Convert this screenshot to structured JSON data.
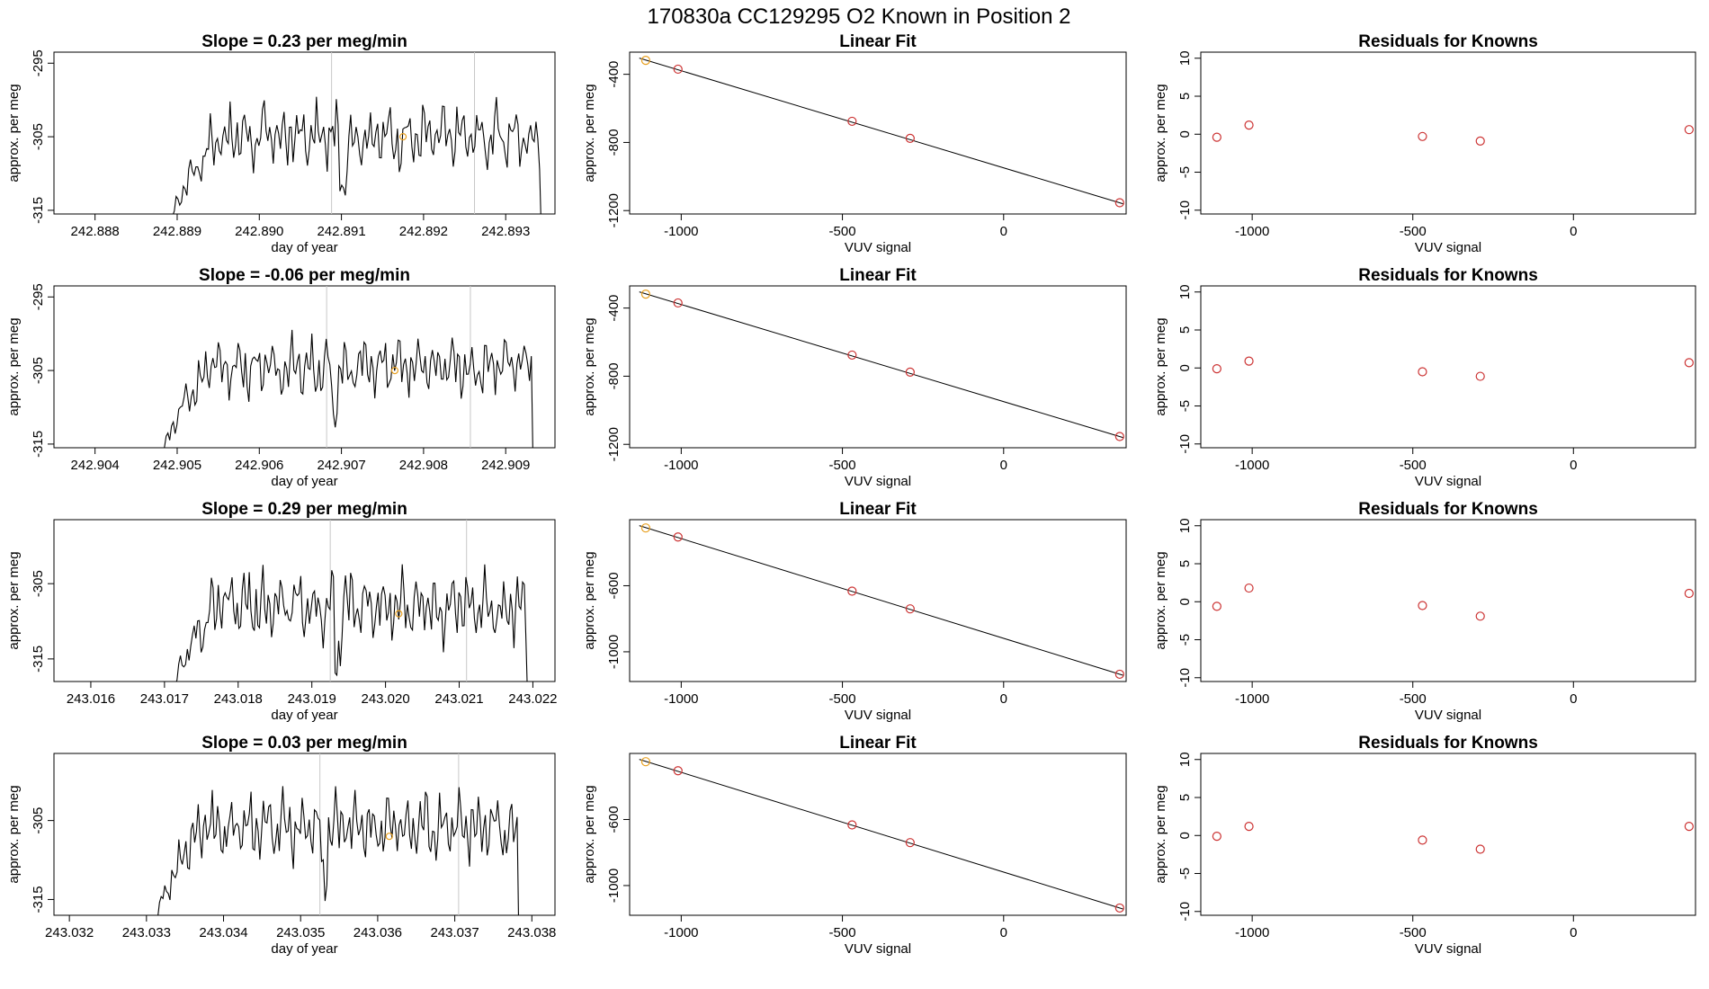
{
  "page": {
    "title": "170830a      CC129295   O2 Known in Position  2"
  },
  "colors": {
    "trace": "#000000",
    "grid_vline": "#c8c8c8",
    "fit_line": "#000000",
    "point_red": "#cc3333",
    "point_orange": "#e8a020"
  },
  "chart_data": [
    {
      "type": "line",
      "title": "Slope =  0.23  per meg/min",
      "xlabel": "day of year",
      "ylabel": "approx. per meg",
      "xlim": [
        242.8875,
        242.8936
      ],
      "ylim": [
        -315.5,
        -293.5
      ],
      "xticks": [
        {
          "v": 242.888,
          "t": "242.888"
        },
        {
          "v": 242.889,
          "t": "242.889"
        },
        {
          "v": 242.89,
          "t": "242.890"
        },
        {
          "v": 242.891,
          "t": "242.891"
        },
        {
          "v": 242.892,
          "t": "242.892"
        },
        {
          "v": 242.893,
          "t": "242.893"
        }
      ],
      "yticks": [
        {
          "v": -295,
          "t": "-295"
        },
        {
          "v": -305,
          "t": "-305"
        },
        {
          "v": -315,
          "t": "-315"
        }
      ],
      "trace": {
        "x_start": 242.8889,
        "x_end": 242.8935,
        "level": -305,
        "amp": 2.2
      },
      "vlines": [
        242.89088,
        242.89262
      ],
      "marker": {
        "x": 242.89175,
        "y": -305
      }
    },
    {
      "type": "scatter",
      "title": "Linear Fit",
      "xlabel": "VUV signal",
      "ylabel": "approx. per meg",
      "xlim": [
        -1160,
        380
      ],
      "ylim": [
        -1220,
        -270
      ],
      "xticks": [
        {
          "v": -1000,
          "t": "-1000"
        },
        {
          "v": -500,
          "t": "-500"
        },
        {
          "v": 0,
          "t": "0"
        }
      ],
      "yticks": [
        {
          "v": -400,
          "t": "-400"
        },
        {
          "v": -800,
          "t": "-800"
        },
        {
          "v": -1200,
          "t": "-1200"
        }
      ],
      "points": [
        {
          "x": -1110,
          "y": -318,
          "c": "orange"
        },
        {
          "x": -1010,
          "y": -370
        },
        {
          "x": -470,
          "y": -676
        },
        {
          "x": -290,
          "y": -776
        },
        {
          "x": 360,
          "y": -1154
        }
      ],
      "fit": {
        "x0": -1130,
        "y0": -305,
        "x1": 370,
        "y1": -1160
      }
    },
    {
      "type": "scatter",
      "title": "Residuals for Knowns",
      "xlabel": "VUV signal",
      "ylabel": "approx. per meg",
      "xlim": [
        -1160,
        380
      ],
      "ylim": [
        -10.5,
        10.8
      ],
      "xticks": [
        {
          "v": -1000,
          "t": "-1000"
        },
        {
          "v": -500,
          "t": "-500"
        },
        {
          "v": 0,
          "t": "0"
        }
      ],
      "yticks": [
        {
          "v": 10,
          "t": "10"
        },
        {
          "v": 5,
          "t": "5"
        },
        {
          "v": 0,
          "t": "0"
        },
        {
          "v": -5,
          "t": "-5"
        },
        {
          "v": -10,
          "t": "-10"
        }
      ],
      "points": [
        {
          "x": -1110,
          "y": -0.4
        },
        {
          "x": -1010,
          "y": 1.2
        },
        {
          "x": -470,
          "y": -0.3
        },
        {
          "x": -290,
          "y": -0.9
        },
        {
          "x": 360,
          "y": 0.6
        }
      ]
    },
    {
      "type": "line",
      "title": "Slope =  -0.06  per meg/min",
      "xlabel": "day of year",
      "ylabel": "approx. per meg",
      "xlim": [
        242.9035,
        242.9096
      ],
      "ylim": [
        -315.5,
        -293.5
      ],
      "xticks": [
        {
          "v": 242.904,
          "t": "242.904"
        },
        {
          "v": 242.905,
          "t": "242.905"
        },
        {
          "v": 242.906,
          "t": "242.906"
        },
        {
          "v": 242.907,
          "t": "242.907"
        },
        {
          "v": 242.908,
          "t": "242.908"
        },
        {
          "v": 242.909,
          "t": "242.909"
        }
      ],
      "yticks": [
        {
          "v": -295,
          "t": "-295"
        },
        {
          "v": -305,
          "t": "-305"
        },
        {
          "v": -315,
          "t": "-315"
        }
      ],
      "trace": {
        "x_start": 242.9048,
        "x_end": 242.9094,
        "level": -304.5,
        "amp": 2.0
      },
      "vlines": [
        242.90682,
        242.90857
      ],
      "marker": {
        "x": 242.90765,
        "y": -305
      }
    },
    {
      "type": "scatter",
      "title": "Linear Fit",
      "xlabel": "VUV signal",
      "ylabel": "approx. per meg",
      "xlim": [
        -1160,
        380
      ],
      "ylim": [
        -1220,
        -270
      ],
      "xticks": [
        {
          "v": -1000,
          "t": "-1000"
        },
        {
          "v": -500,
          "t": "-500"
        },
        {
          "v": 0,
          "t": "0"
        }
      ],
      "yticks": [
        {
          "v": -400,
          "t": "-400"
        },
        {
          "v": -800,
          "t": "-800"
        },
        {
          "v": -1200,
          "t": "-1200"
        }
      ],
      "points": [
        {
          "x": -1110,
          "y": -318,
          "c": "orange"
        },
        {
          "x": -1010,
          "y": -370
        },
        {
          "x": -470,
          "y": -676
        },
        {
          "x": -290,
          "y": -776
        },
        {
          "x": 360,
          "y": -1154
        }
      ],
      "fit": {
        "x0": -1130,
        "y0": -305,
        "x1": 370,
        "y1": -1160
      }
    },
    {
      "type": "scatter",
      "title": "Residuals for Knowns",
      "xlabel": "VUV signal",
      "ylabel": "approx. per meg",
      "xlim": [
        -1160,
        380
      ],
      "ylim": [
        -10.5,
        10.8
      ],
      "xticks": [
        {
          "v": -1000,
          "t": "-1000"
        },
        {
          "v": -500,
          "t": "-500"
        },
        {
          "v": 0,
          "t": "0"
        }
      ],
      "yticks": [
        {
          "v": 10,
          "t": "10"
        },
        {
          "v": 5,
          "t": "5"
        },
        {
          "v": 0,
          "t": "0"
        },
        {
          "v": -5,
          "t": "-5"
        },
        {
          "v": -10,
          "t": "-10"
        }
      ],
      "points": [
        {
          "x": -1110,
          "y": -0.1
        },
        {
          "x": -1010,
          "y": 0.9
        },
        {
          "x": -470,
          "y": -0.5
        },
        {
          "x": -290,
          "y": -1.1
        },
        {
          "x": 360,
          "y": 0.7
        }
      ]
    },
    {
      "type": "line",
      "title": "Slope =  0.29  per meg/min",
      "xlabel": "day of year",
      "ylabel": "approx. per meg",
      "xlim": [
        243.0155,
        243.0223
      ],
      "ylim": [
        -318,
        -296.5
      ],
      "xticks": [
        {
          "v": 243.016,
          "t": "243.016"
        },
        {
          "v": 243.017,
          "t": "243.017"
        },
        {
          "v": 243.018,
          "t": "243.018"
        },
        {
          "v": 243.019,
          "t": "243.019"
        },
        {
          "v": 243.02,
          "t": "243.020"
        },
        {
          "v": 243.021,
          "t": "243.021"
        },
        {
          "v": 243.022,
          "t": "243.022"
        }
      ],
      "yticks": [
        {
          "v": -305,
          "t": "-305"
        },
        {
          "v": -315,
          "t": "-315"
        }
      ],
      "trace": {
        "x_start": 243.0171,
        "x_end": 243.022,
        "level": -308,
        "amp": 2.4
      },
      "vlines": [
        243.01925,
        243.0211
      ],
      "marker": {
        "x": 243.02018,
        "y": -309
      }
    },
    {
      "type": "scatter",
      "title": "Linear Fit",
      "xlabel": "VUV signal",
      "ylabel": "approx. per meg",
      "xlim": [
        -1160,
        380
      ],
      "ylim": [
        -1180,
        -200
      ],
      "xticks": [
        {
          "v": -1000,
          "t": "-1000"
        },
        {
          "v": -500,
          "t": "-500"
        },
        {
          "v": 0,
          "t": "0"
        }
      ],
      "yticks": [
        {
          "v": -600,
          "t": "-600"
        },
        {
          "v": -1000,
          "t": "-1000"
        }
      ],
      "points": [
        {
          "x": -1110,
          "y": -250,
          "c": "orange"
        },
        {
          "x": -1010,
          "y": -305
        },
        {
          "x": -470,
          "y": -633
        },
        {
          "x": -290,
          "y": -740
        },
        {
          "x": 360,
          "y": -1136
        }
      ],
      "fit": {
        "x0": -1130,
        "y0": -236,
        "x1": 370,
        "y1": -1142
      }
    },
    {
      "type": "scatter",
      "title": "Residuals for Knowns",
      "xlabel": "VUV signal",
      "ylabel": "approx. per meg",
      "xlim": [
        -1160,
        380
      ],
      "ylim": [
        -10.5,
        10.8
      ],
      "xticks": [
        {
          "v": -1000,
          "t": "-1000"
        },
        {
          "v": -500,
          "t": "-500"
        },
        {
          "v": 0,
          "t": "0"
        }
      ],
      "yticks": [
        {
          "v": 10,
          "t": "10"
        },
        {
          "v": 5,
          "t": "5"
        },
        {
          "v": 0,
          "t": "0"
        },
        {
          "v": -5,
          "t": "-5"
        },
        {
          "v": -10,
          "t": "-10"
        }
      ],
      "points": [
        {
          "x": -1110,
          "y": -0.6
        },
        {
          "x": -1010,
          "y": 1.8
        },
        {
          "x": -470,
          "y": -0.5
        },
        {
          "x": -290,
          "y": -1.9
        },
        {
          "x": 360,
          "y": 1.1
        }
      ]
    },
    {
      "type": "line",
      "title": "Slope =  0.03  per meg/min",
      "xlabel": "day of year",
      "ylabel": "approx. per meg",
      "xlim": [
        243.0318,
        243.0383
      ],
      "ylim": [
        -317,
        -296.5
      ],
      "xticks": [
        {
          "v": 243.032,
          "t": "243.032"
        },
        {
          "v": 243.033,
          "t": "243.033"
        },
        {
          "v": 243.034,
          "t": "243.034"
        },
        {
          "v": 243.035,
          "t": "243.035"
        },
        {
          "v": 243.036,
          "t": "243.036"
        },
        {
          "v": 243.037,
          "t": "243.037"
        },
        {
          "v": 243.038,
          "t": "243.038"
        }
      ],
      "yticks": [
        {
          "v": -305,
          "t": "-305"
        },
        {
          "v": -315,
          "t": "-315"
        }
      ],
      "trace": {
        "x_start": 243.0331,
        "x_end": 243.0379,
        "level": -306,
        "amp": 2.2
      },
      "vlines": [
        243.03525,
        243.03705
      ],
      "marker": {
        "x": 243.03615,
        "y": -307
      }
    },
    {
      "type": "scatter",
      "title": "Linear Fit",
      "xlabel": "VUV signal",
      "ylabel": "approx. per meg",
      "xlim": [
        -1160,
        380
      ],
      "ylim": [
        -1180,
        -200
      ],
      "xticks": [
        {
          "v": -1000,
          "t": "-1000"
        },
        {
          "v": -500,
          "t": "-500"
        },
        {
          "v": 0,
          "t": "0"
        }
      ],
      "yticks": [
        {
          "v": -600,
          "t": "-600"
        },
        {
          "v": -1000,
          "t": "-1000"
        }
      ],
      "points": [
        {
          "x": -1110,
          "y": -250,
          "c": "orange"
        },
        {
          "x": -1010,
          "y": -305
        },
        {
          "x": -470,
          "y": -633
        },
        {
          "x": -290,
          "y": -740
        },
        {
          "x": 360,
          "y": -1136
        }
      ],
      "fit": {
        "x0": -1130,
        "y0": -236,
        "x1": 370,
        "y1": -1142
      }
    },
    {
      "type": "scatter",
      "title": "Residuals for Knowns",
      "xlabel": "VUV signal",
      "ylabel": "approx. per meg",
      "xlim": [
        -1160,
        380
      ],
      "ylim": [
        -10.5,
        10.8
      ],
      "xticks": [
        {
          "v": -1000,
          "t": "-1000"
        },
        {
          "v": -500,
          "t": "-500"
        },
        {
          "v": 0,
          "t": "0"
        }
      ],
      "yticks": [
        {
          "v": 10,
          "t": "10"
        },
        {
          "v": 5,
          "t": "5"
        },
        {
          "v": 0,
          "t": "0"
        },
        {
          "v": -5,
          "t": "-5"
        },
        {
          "v": -10,
          "t": "-10"
        }
      ],
      "points": [
        {
          "x": -1110,
          "y": -0.1
        },
        {
          "x": -1010,
          "y": 1.2
        },
        {
          "x": -470,
          "y": -0.6
        },
        {
          "x": -290,
          "y": -1.8
        },
        {
          "x": 360,
          "y": 1.2
        }
      ]
    }
  ]
}
